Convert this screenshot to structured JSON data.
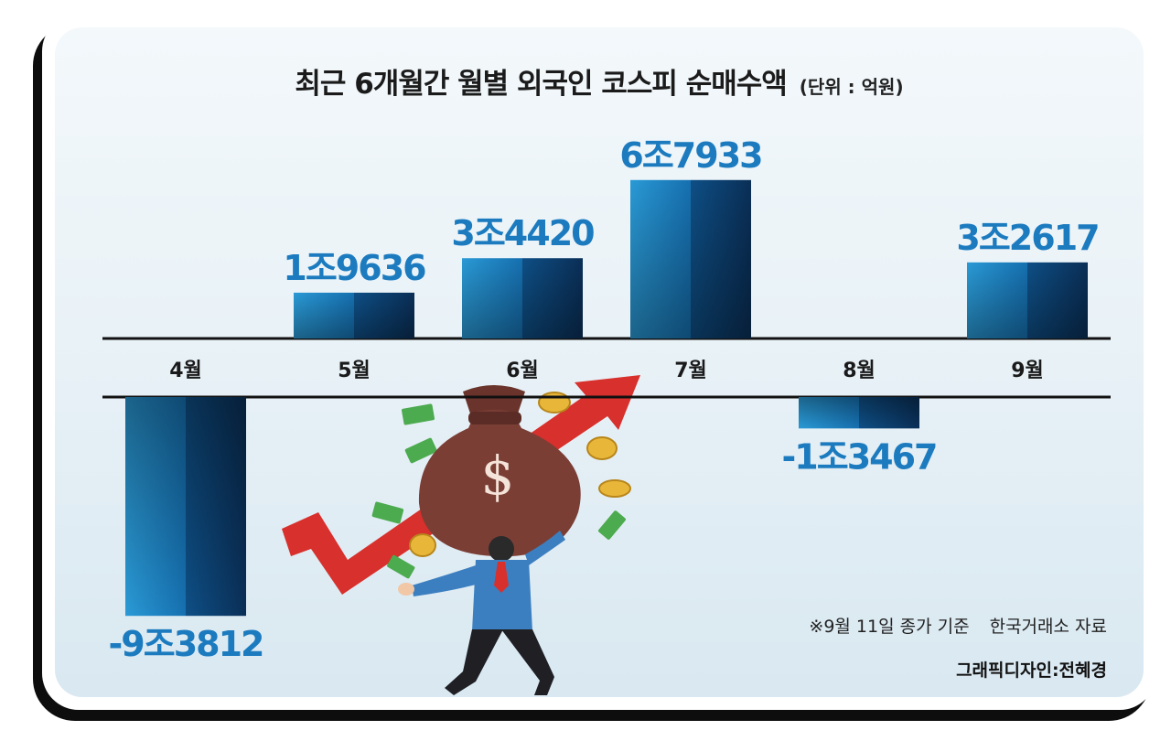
{
  "chart_data": {
    "type": "bar",
    "title": "최근 6개월간 월별 외국인 코스피 순매수액",
    "unit_label": "(단위 : 억원)",
    "categories": [
      "4월",
      "5월",
      "6월",
      "7월",
      "8월",
      "9월"
    ],
    "values": [
      -93812,
      19636,
      34420,
      67933,
      -13467,
      32617
    ],
    "data_labels": [
      "-9조3812",
      "1조9636",
      "3조4420",
      "6조7933",
      "-1조3467",
      "3조2617"
    ],
    "colors": {
      "bar_light": "#1c8ac9",
      "bar_dark": "#0a2f57",
      "positive_label": "#1c7bbf",
      "negative_label": "#1c7bbf",
      "axis_line": "#111111"
    }
  },
  "footer": {
    "note": "※9월 11일 종가 기준",
    "source": "한국거래소 자료",
    "credit": "그래픽디자인:전혜경"
  },
  "illustration": {
    "description_icon": "man-carrying-money-bag-icon",
    "arrow_color": "#d8302c",
    "bag_color": "#7a3e35"
  }
}
